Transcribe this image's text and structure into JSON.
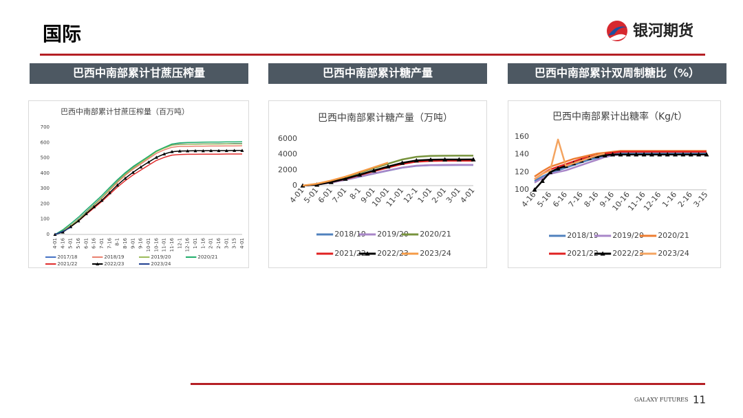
{
  "header": {
    "title": "国际",
    "logo": "银河期货"
  },
  "panels": [
    "巴西中南部累计甘蔗压榨量",
    "巴西中南部累计糖产量",
    "巴西中南部累计双周制糖比（%）"
  ],
  "footer": {
    "brand": "GALAXY FUTURES",
    "page": 11
  },
  "chart_data": [
    {
      "type": "line",
      "title": "巴西中南部累计甘蔗压榨量（百万吨）",
      "categories": [
        "4-01",
        "4-16",
        "5-01",
        "5-16",
        "6-01",
        "6-16",
        "7-01",
        "7-16",
        "8-1",
        "8-16",
        "9-01",
        "9-16",
        "10-01",
        "10-16",
        "11-01",
        "11-16",
        "12-1",
        "12-16",
        "1-01",
        "1-16",
        "2-01",
        "2-16",
        "3-01",
        "3-15",
        "4-01"
      ],
      "ylim": [
        0,
        700
      ],
      "yticks": [
        0,
        100,
        200,
        300,
        400,
        500,
        600,
        700
      ],
      "grid": false,
      "series": [
        {
          "name": "2017/18",
          "color": "#4472c4",
          "values": [
            0,
            24,
            59,
            100,
            148,
            195,
            242,
            295,
            348,
            395,
            437,
            472,
            507,
            543,
            566,
            584,
            590,
            590,
            590,
            591,
            591,
            592,
            592,
            593,
            593
          ]
        },
        {
          "name": "2018/19",
          "color": "#e9806e",
          "values": [
            0,
            23,
            58,
            98,
            144,
            190,
            236,
            288,
            339,
            385,
            426,
            460,
            495,
            529,
            552,
            569,
            575,
            575,
            576,
            576,
            577,
            577,
            578,
            578,
            579
          ]
        },
        {
          "name": "2019/20",
          "color": "#9bbb59",
          "values": [
            0,
            22,
            57,
            97,
            145,
            193,
            240,
            293,
            345,
            392,
            433,
            469,
            504,
            540,
            563,
            582,
            588,
            589,
            589,
            590,
            590,
            590,
            591,
            591,
            591
          ]
        },
        {
          "name": "2020/21",
          "color": "#1fae6a",
          "values": [
            0,
            30,
            70,
            112,
            160,
            207,
            254,
            306,
            357,
            403,
            443,
            477,
            510,
            545,
            568,
            590,
            598,
            600,
            601,
            602,
            603,
            603,
            604,
            604,
            605
          ]
        },
        {
          "name": "2021/22",
          "color": "#e02b2b",
          "values": [
            0,
            18,
            50,
            87,
            131,
            173,
            215,
            262,
            309,
            351,
            388,
            420,
            452,
            483,
            503,
            518,
            522,
            523,
            523,
            524,
            524,
            524,
            525,
            525,
            525
          ]
        },
        {
          "name": "2022/23",
          "color": "#000000",
          "marker": "triangle",
          "values": [
            0,
            15,
            50,
            88,
            135,
            180,
            222,
            272,
            322,
            366,
            405,
            440,
            472,
            503,
            525,
            540,
            544,
            545,
            546,
            546,
            547,
            547,
            547,
            548,
            548
          ]
        },
        {
          "name": "2023/24",
          "color": "#1f3f8f",
          "values": [
            0,
            20,
            45,
            null,
            null,
            null,
            null,
            null,
            null,
            null,
            null,
            null,
            null,
            null,
            null,
            null,
            null,
            null,
            null,
            null,
            null,
            null,
            null,
            null,
            null
          ]
        }
      ]
    },
    {
      "type": "line",
      "title": "巴西中南部累计糖产量（万吨）",
      "categories": [
        "4-01",
        "5-01",
        "6-01",
        "7-01",
        "8-1",
        "9-01",
        "10-01",
        "11-01",
        "12-1",
        "1-01",
        "2-01",
        "3-01",
        "4-01"
      ],
      "ylim": [
        0,
        6000
      ],
      "yticks": [
        0,
        2000,
        4000,
        6000
      ],
      "grid": false,
      "series": [
        {
          "name": "2018/19",
          "color": "#4f81bd",
          "values": [
            0,
            130,
            400,
            740,
            1140,
            1540,
            1930,
            2300,
            2540,
            2620,
            2640,
            2645,
            2650
          ]
        },
        {
          "name": "2019/20",
          "color": "#a886c8",
          "values": [
            0,
            135,
            400,
            750,
            1150,
            1550,
            1950,
            2320,
            2560,
            2640,
            2660,
            2665,
            2670
          ]
        },
        {
          "name": "2020/21",
          "color": "#77933c",
          "values": [
            0,
            190,
            580,
            1080,
            1660,
            2230,
            2810,
            3350,
            3700,
            3810,
            3840,
            3845,
            3850
          ]
        },
        {
          "name": "2021/22",
          "color": "#e02020",
          "values": [
            0,
            140,
            450,
            850,
            1340,
            1840,
            2320,
            2780,
            3070,
            3170,
            3190,
            3195,
            3200
          ]
        },
        {
          "name": "2022/23",
          "color": "#000000",
          "marker": "triangle",
          "values": [
            0,
            120,
            450,
            880,
            1400,
            1930,
            2450,
            2920,
            3230,
            3330,
            3350,
            3355,
            3360
          ]
        },
        {
          "name": "2023/24",
          "color": "#f59a45",
          "values": [
            0,
            250,
            650,
            1150,
            1750,
            2350,
            2950,
            null,
            null,
            null,
            null,
            null,
            null
          ]
        }
      ]
    },
    {
      "type": "line",
      "title": "巴西中南部累计出糖率（Kg/t）",
      "categories": [
        "4-16",
        null,
        "5-16",
        null,
        "6-16",
        null,
        "7-16",
        null,
        "8-16",
        null,
        "9-16",
        null,
        "10-16",
        null,
        "11-16",
        null,
        "12-16",
        null,
        "1-16",
        null,
        "2-16",
        null,
        "3-15"
      ],
      "ylim": [
        100,
        160
      ],
      "yticks": [
        100,
        120,
        140,
        160
      ],
      "grid": false,
      "series": [
        {
          "name": "2018/19",
          "color": "#4f81bd",
          "values": [
            110,
            115,
            119,
            122,
            125,
            128,
            131,
            134,
            136,
            138,
            140,
            141,
            141,
            141,
            141,
            141,
            141,
            141,
            141,
            141,
            141,
            141,
            141
          ]
        },
        {
          "name": "2019/20",
          "color": "#a886c8",
          "values": [
            108,
            113,
            118,
            120,
            122,
            125,
            128,
            131,
            134,
            137,
            139,
            140,
            140,
            140,
            140,
            140,
            140,
            140,
            140,
            140,
            140,
            140,
            140
          ]
        },
        {
          "name": "2020/21",
          "color": "#ed7d31",
          "values": [
            115,
            121,
            126,
            129,
            132,
            135,
            137,
            139,
            141,
            142,
            143,
            144,
            144,
            144,
            144,
            144,
            144,
            144,
            144,
            144,
            144,
            144,
            144
          ]
        },
        {
          "name": "2021/22",
          "color": "#e02020",
          "values": [
            112,
            118,
            123,
            126,
            129,
            132,
            135,
            137,
            139,
            141,
            142,
            143,
            143,
            143,
            143,
            143,
            143,
            143,
            143,
            143,
            143,
            143,
            143
          ]
        },
        {
          "name": "2022/23",
          "color": "#000000",
          "marker": "triangle",
          "values": [
            100,
            110,
            120,
            124,
            127,
            130,
            133,
            136,
            138,
            139,
            140,
            140,
            140,
            140,
            140,
            140,
            140,
            140,
            140,
            140,
            140,
            140,
            140
          ]
        },
        {
          "name": "2023/24",
          "color": "#f4a460",
          "values": [
            112,
            118,
            122,
            157,
            127,
            130,
            133,
            136,
            139,
            141,
            null,
            null,
            null,
            null,
            null,
            null,
            null,
            null,
            null,
            null,
            null,
            null,
            null
          ]
        }
      ]
    }
  ]
}
